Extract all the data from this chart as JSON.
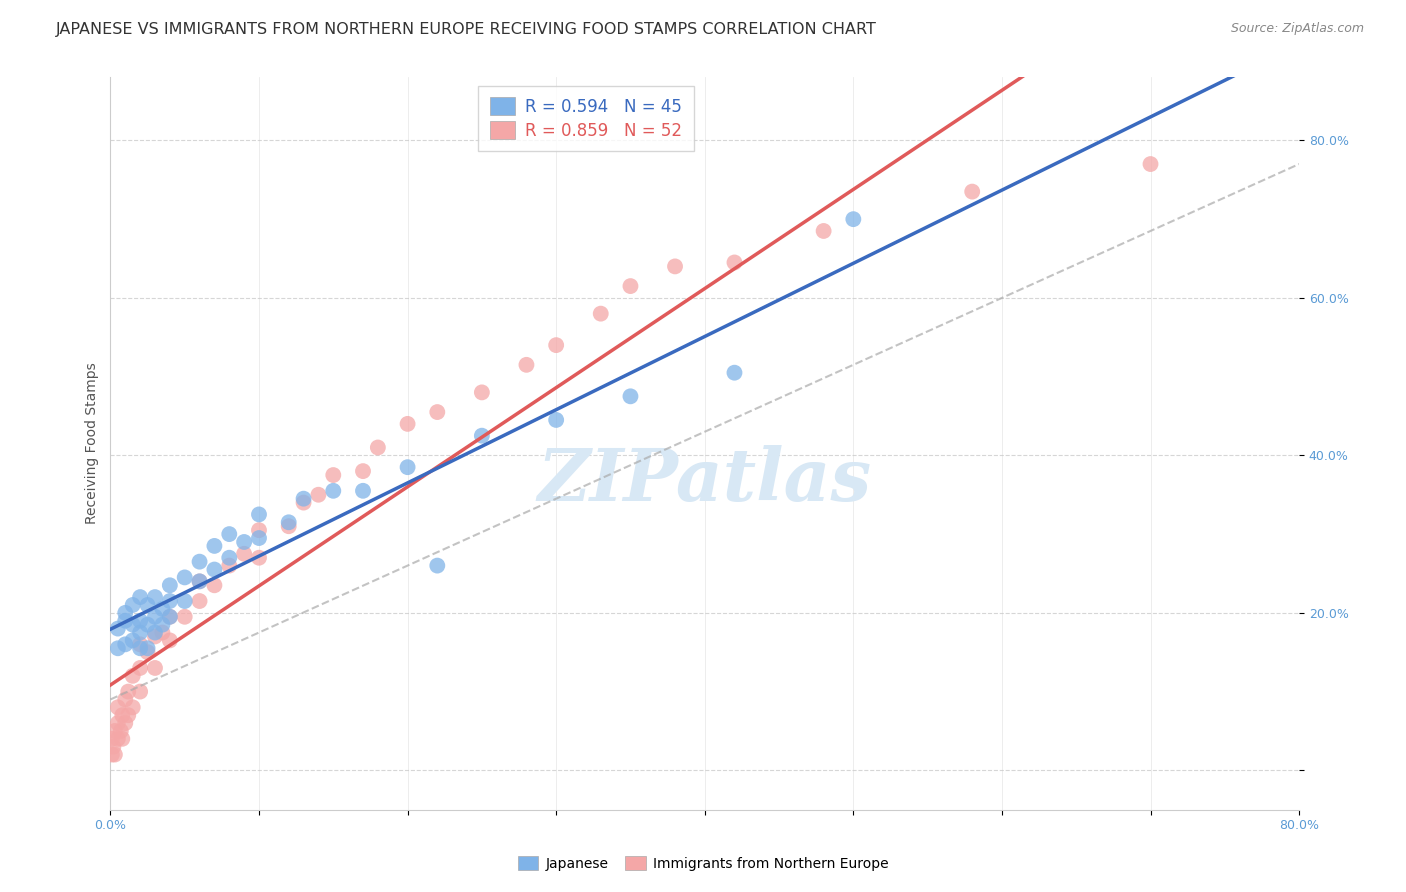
{
  "title": "JAPANESE VS IMMIGRANTS FROM NORTHERN EUROPE RECEIVING FOOD STAMPS CORRELATION CHART",
  "source": "Source: ZipAtlas.com",
  "ylabel": "Receiving Food Stamps",
  "xlim": [
    0,
    0.8
  ],
  "ylim": [
    -0.05,
    0.88
  ],
  "watermark": "ZIPatlas",
  "blue_color": "#7fb3e8",
  "pink_color": "#f4a7a7",
  "blue_line_color": "#3a6abf",
  "pink_line_color": "#e05a5a",
  "gray_dash_color": "#aaaaaa",
  "blue_r": "0.594",
  "blue_n": "45",
  "pink_r": "0.859",
  "pink_n": "52",
  "blue_scatter_x": [
    0.005,
    0.005,
    0.01,
    0.01,
    0.01,
    0.015,
    0.015,
    0.015,
    0.02,
    0.02,
    0.02,
    0.02,
    0.025,
    0.025,
    0.025,
    0.03,
    0.03,
    0.03,
    0.035,
    0.035,
    0.04,
    0.04,
    0.04,
    0.05,
    0.05,
    0.06,
    0.06,
    0.07,
    0.07,
    0.08,
    0.08,
    0.09,
    0.1,
    0.1,
    0.12,
    0.13,
    0.15,
    0.17,
    0.2,
    0.22,
    0.25,
    0.3,
    0.35,
    0.42,
    0.5
  ],
  "blue_scatter_y": [
    0.155,
    0.18,
    0.16,
    0.19,
    0.2,
    0.165,
    0.185,
    0.21,
    0.155,
    0.175,
    0.19,
    0.22,
    0.155,
    0.185,
    0.21,
    0.175,
    0.195,
    0.22,
    0.185,
    0.205,
    0.195,
    0.215,
    0.235,
    0.215,
    0.245,
    0.24,
    0.265,
    0.255,
    0.285,
    0.27,
    0.3,
    0.29,
    0.295,
    0.325,
    0.315,
    0.345,
    0.355,
    0.355,
    0.385,
    0.26,
    0.425,
    0.445,
    0.475,
    0.505,
    0.7
  ],
  "pink_scatter_x": [
    0.001,
    0.001,
    0.002,
    0.003,
    0.003,
    0.005,
    0.005,
    0.005,
    0.007,
    0.008,
    0.008,
    0.01,
    0.01,
    0.012,
    0.012,
    0.015,
    0.015,
    0.02,
    0.02,
    0.02,
    0.025,
    0.03,
    0.03,
    0.035,
    0.04,
    0.04,
    0.05,
    0.06,
    0.06,
    0.07,
    0.08,
    0.09,
    0.1,
    0.1,
    0.12,
    0.13,
    0.14,
    0.15,
    0.17,
    0.18,
    0.2,
    0.22,
    0.25,
    0.28,
    0.3,
    0.33,
    0.35,
    0.38,
    0.42,
    0.48,
    0.58,
    0.7
  ],
  "pink_scatter_y": [
    0.02,
    0.04,
    0.03,
    0.02,
    0.05,
    0.04,
    0.06,
    0.08,
    0.05,
    0.04,
    0.07,
    0.06,
    0.09,
    0.07,
    0.1,
    0.08,
    0.12,
    0.1,
    0.13,
    0.16,
    0.15,
    0.13,
    0.17,
    0.175,
    0.165,
    0.195,
    0.195,
    0.215,
    0.24,
    0.235,
    0.26,
    0.275,
    0.27,
    0.305,
    0.31,
    0.34,
    0.35,
    0.375,
    0.38,
    0.41,
    0.44,
    0.455,
    0.48,
    0.515,
    0.54,
    0.58,
    0.615,
    0.64,
    0.645,
    0.685,
    0.735,
    0.77
  ],
  "blue_line_slope": 0.85,
  "blue_line_intercept": 0.13,
  "pink_line_slope": 1.05,
  "pink_line_intercept": 0.01,
  "gray_dash_slope": 0.85,
  "gray_dash_intercept": 0.09,
  "legend_box_color": "#ffffff",
  "legend_border_color": "#cccccc",
  "grid_color": "#cccccc",
  "background_color": "#ffffff",
  "title_color": "#333333",
  "axis_label_color": "#555555",
  "tick_color": "#5b9bd5",
  "watermark_color": "#d8e8f5",
  "title_fontsize": 11.5,
  "source_fontsize": 9,
  "axis_label_fontsize": 10,
  "tick_fontsize": 9,
  "legend_fontsize": 12,
  "watermark_fontsize": 52
}
